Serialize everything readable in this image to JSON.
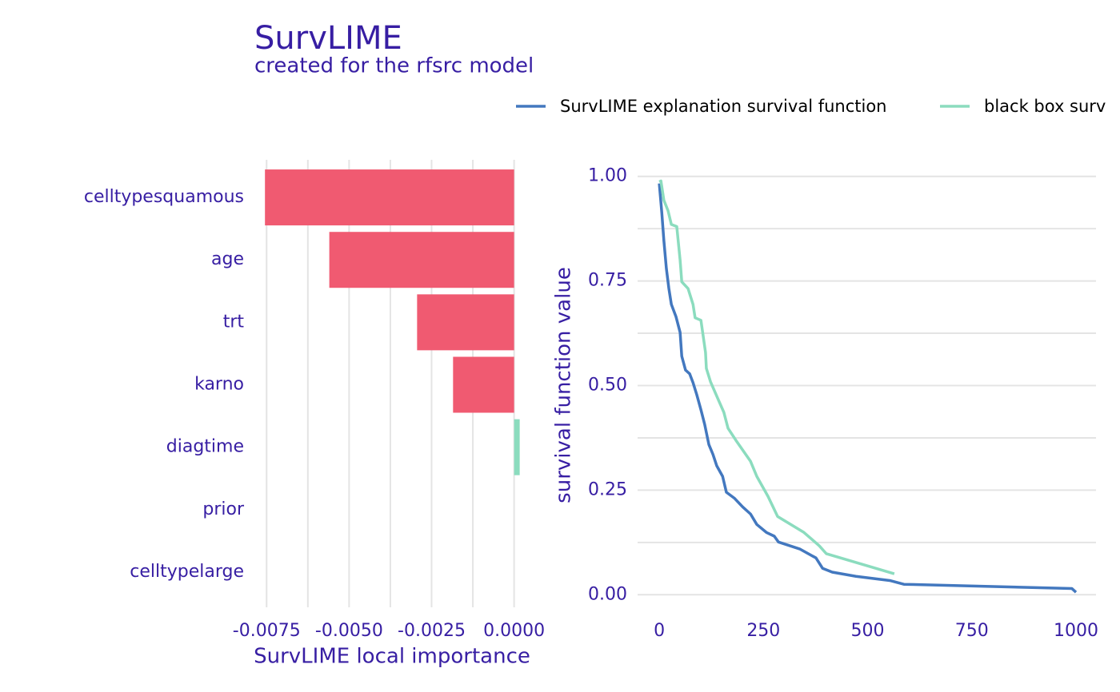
{
  "chart_data": [
    {
      "type": "bar",
      "orientation": "horizontal",
      "title": "SurvLIME",
      "subtitle": "created for the rfsrc model",
      "xlabel": "SurvLIME local importance",
      "categories": [
        "celltypesquamous",
        "age",
        "trt",
        "karno",
        "diagtime",
        "prior",
        "celltypelarge"
      ],
      "values": [
        -0.00755,
        -0.0056,
        -0.00294,
        -0.00185,
        0.00017,
        0,
        0
      ],
      "colors": [
        "#f05a71",
        "#f05a71",
        "#f05a71",
        "#f05a71",
        "#8bdcbe",
        "#f05a71",
        "#f05a71"
      ],
      "xlim": [
        -0.0077,
        0.0003
      ],
      "xticks": [
        -0.0075,
        {
          "value": -0.005,
          "label": "-0.0050"
        },
        {
          "value": -0.0025,
          "label": "-0.0025"
        },
        {
          "value": 0,
          "label": "0.0000"
        }
      ],
      "grid": true,
      "minor_grid": true
    },
    {
      "type": "line",
      "ylabel": "survival function value",
      "legend": "top",
      "xlim": [
        -52,
        1048
      ],
      "ylim": [
        -0.03,
        1.03
      ],
      "xticks": [
        0,
        250,
        500,
        750,
        1000
      ],
      "yticks": [
        {
          "value": 0,
          "label": "0.00"
        },
        {
          "value": 0.25,
          "label": "0.25"
        },
        {
          "value": 0.5,
          "label": "0.50"
        },
        {
          "value": 0.75,
          "label": "0.75"
        },
        {
          "value": 1,
          "label": "1.00"
        }
      ],
      "grid": true,
      "minor_grid": true,
      "series": [
        {
          "name": "SurvLIME explanation survival function",
          "color": "#4378bf",
          "x": [
            0,
            6,
            11,
            17,
            23,
            29,
            40,
            50,
            54,
            63,
            73,
            81,
            90,
            100,
            109,
            119,
            129,
            138,
            152,
            161,
            180,
            200,
            219,
            234,
            257,
            276,
            286,
            338,
            376,
            392,
            415,
            472,
            553,
            587,
            990,
            1000
          ],
          "values": [
            0.983,
            0.914,
            0.847,
            0.78,
            0.732,
            0.694,
            0.665,
            0.627,
            0.57,
            0.537,
            0.528,
            0.507,
            0.478,
            0.442,
            0.407,
            0.359,
            0.335,
            0.308,
            0.283,
            0.245,
            0.231,
            0.21,
            0.193,
            0.168,
            0.149,
            0.14,
            0.126,
            0.109,
            0.088,
            0.063,
            0.054,
            0.044,
            0.034,
            0.025,
            0.015,
            0.006
          ]
        },
        {
          "name": "black box surv",
          "color": "#8bdcbe",
          "x": [
            0,
            4,
            11,
            21,
            29,
            42,
            50,
            54,
            69,
            81,
            86,
            100,
            111,
            113,
            123,
            140,
            155,
            165,
            184,
            219,
            234,
            261,
            284,
            347,
            384,
            401,
            564
          ],
          "values": [
            0.987,
            0.989,
            0.943,
            0.918,
            0.885,
            0.88,
            0.8,
            0.748,
            0.732,
            0.694,
            0.662,
            0.656,
            0.579,
            0.541,
            0.509,
            0.47,
            0.436,
            0.398,
            0.369,
            0.319,
            0.283,
            0.235,
            0.187,
            0.149,
            0.117,
            0.098,
            0.05
          ]
        }
      ]
    }
  ]
}
